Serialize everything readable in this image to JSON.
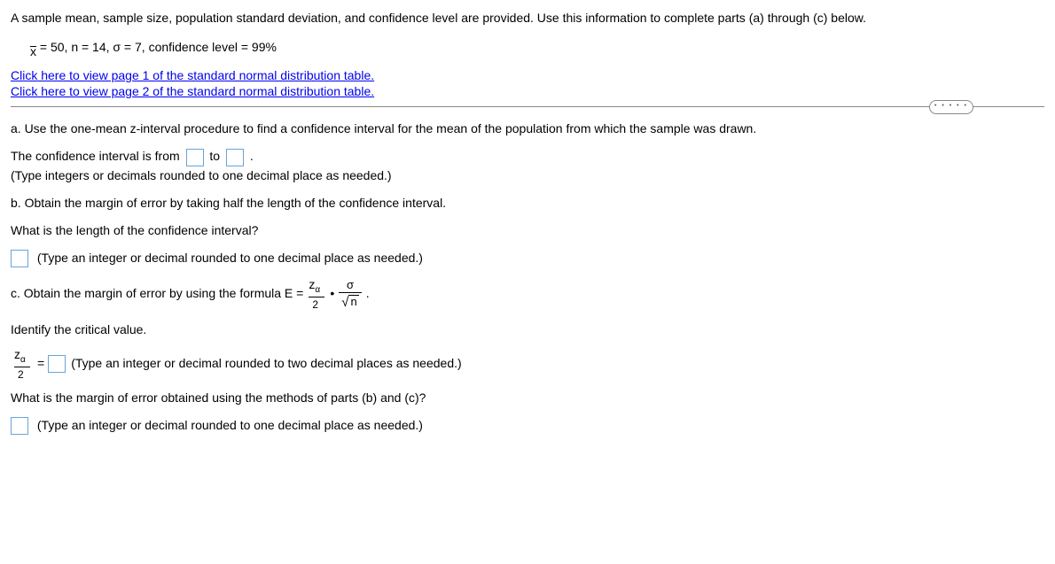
{
  "intro": "A sample mean, sample size, population standard deviation, and confidence level are provided. Use this information to complete parts (a) through (c) below.",
  "given": {
    "xbar_label": "x",
    "xbar_value": "= 50,",
    "n": "n = 14,",
    "sigma": "σ = 7,",
    "conf": "confidence level = 99%"
  },
  "links": {
    "page1": "Click here to view page 1 of the standard normal distribution table.",
    "page2": "Click here to view page 2 of the standard normal distribution table."
  },
  "a": {
    "prompt": "a. Use the one-mean z-interval procedure to find a confidence interval for the mean of the population from which the sample was drawn.",
    "ci_before": "The confidence interval is from",
    "ci_mid": "to",
    "ci_after": ".",
    "note": "(Type integers or decimals rounded to one decimal place as needed.)"
  },
  "b": {
    "prompt": "b. Obtain the margin of error by taking half the length of the confidence interval.",
    "q": "What is the length of the confidence interval?",
    "note": "(Type an integer or decimal rounded to one decimal place as needed.)"
  },
  "c": {
    "prompt_before": "c. Obtain the margin of error by using the formula E = ",
    "z_top": "z",
    "alpha": "α",
    "two": "2",
    "dot": "•",
    "sigma_sym": "σ",
    "sqrt_n": "n",
    "period": ".",
    "identify": "Identify the critical value.",
    "eq": "=",
    "note": "(Type an integer or decimal rounded to two decimal places as needed.)",
    "q2": "What is the margin of error obtained using the methods of parts (b) and (c)?",
    "note2": "(Type an integer or decimal rounded to one decimal place as needed.)"
  }
}
